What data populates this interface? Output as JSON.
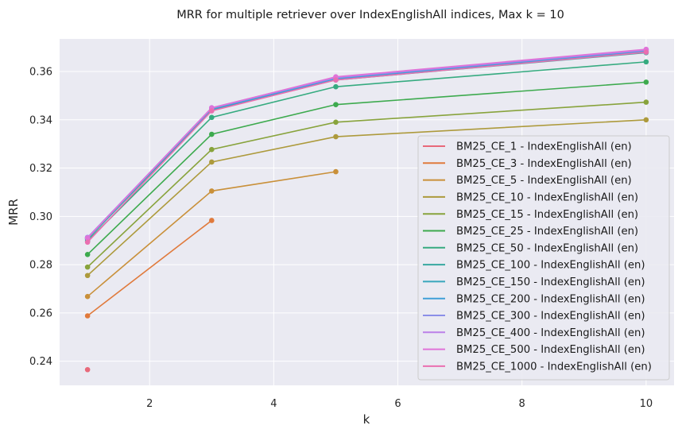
{
  "chart_data": {
    "type": "line",
    "title": "MRR for multiple retriever over IndexEnglishAll indices, Max k = 10",
    "xlabel": "k",
    "ylabel": "MRR",
    "xlim": [
      0.55,
      10.45
    ],
    "ylim": [
      0.23,
      0.3735
    ],
    "xticks": [
      2,
      4,
      6,
      8,
      10
    ],
    "yticks": [
      0.24,
      0.26,
      0.28,
      0.3,
      0.32,
      0.34,
      0.36
    ],
    "ytick_labels": [
      "0.24",
      "0.26",
      "0.28",
      "0.30",
      "0.32",
      "0.34",
      "0.36"
    ],
    "grid": true,
    "legend_position": "right",
    "series": [
      {
        "name": "BM25_CE_1 - IndexEnglishAll (en)",
        "color": "#e8697a",
        "x": [
          1
        ],
        "values": [
          0.2365
        ]
      },
      {
        "name": "BM25_CE_3 - IndexEnglishAll (en)",
        "color": "#e07a3c",
        "x": [
          1,
          3
        ],
        "values": [
          0.2588,
          0.2983
        ]
      },
      {
        "name": "BM25_CE_5 - IndexEnglishAll (en)",
        "color": "#c9903a",
        "x": [
          1,
          3,
          5
        ],
        "values": [
          0.2668,
          0.3105,
          0.3185
        ]
      },
      {
        "name": "BM25_CE_10 - IndexEnglishAll (en)",
        "color": "#ad9a3c",
        "x": [
          1,
          3,
          5,
          10
        ],
        "values": [
          0.2755,
          0.3225,
          0.333,
          0.34
        ]
      },
      {
        "name": "BM25_CE_15 - IndexEnglishAll (en)",
        "color": "#88a33c",
        "x": [
          1,
          3,
          5,
          10
        ],
        "values": [
          0.279,
          0.3277,
          0.339,
          0.3473
        ]
      },
      {
        "name": "BM25_CE_25 - IndexEnglishAll (en)",
        "color": "#3daa4e",
        "x": [
          1,
          3,
          5,
          10
        ],
        "values": [
          0.2842,
          0.334,
          0.3463,
          0.3556
        ]
      },
      {
        "name": "BM25_CE_50 - IndexEnglishAll (en)",
        "color": "#36ab80",
        "x": [
          1,
          3,
          5,
          10
        ],
        "values": [
          0.2898,
          0.341,
          0.3537,
          0.364
        ]
      },
      {
        "name": "BM25_CE_100 - IndexEnglishAll (en)",
        "color": "#37a8a0",
        "x": [
          1,
          3,
          5,
          10
        ],
        "values": [
          0.2905,
          0.344,
          0.3565,
          0.3678
        ]
      },
      {
        "name": "BM25_CE_150 - IndexEnglishAll (en)",
        "color": "#38a6bd",
        "x": [
          1,
          3,
          5,
          10
        ],
        "values": [
          0.2908,
          0.3443,
          0.3568,
          0.3681
        ]
      },
      {
        "name": "BM25_CE_200 - IndexEnglishAll (en)",
        "color": "#3f9fd8",
        "x": [
          1,
          3,
          5,
          10
        ],
        "values": [
          0.291,
          0.3445,
          0.357,
          0.3684
        ]
      },
      {
        "name": "BM25_CE_300 - IndexEnglishAll (en)",
        "color": "#8b8fe8",
        "x": [
          1,
          3,
          5,
          10
        ],
        "values": [
          0.2913,
          0.3448,
          0.3574,
          0.3688
        ]
      },
      {
        "name": "BM25_CE_400 - IndexEnglishAll (en)",
        "color": "#bb80e8",
        "x": [
          1,
          3,
          5,
          10
        ],
        "values": [
          0.2912,
          0.345,
          0.3576,
          0.369
        ]
      },
      {
        "name": "BM25_CE_500 - IndexEnglishAll (en)",
        "color": "#e073d8",
        "x": [
          1,
          3,
          5,
          10
        ],
        "values": [
          0.291,
          0.3449,
          0.3578,
          0.3692
        ]
      },
      {
        "name": "BM25_CE_1000 - IndexEnglishAll (en)",
        "color": "#ea6fb0",
        "x": [
          1,
          3,
          5,
          10
        ],
        "values": [
          0.2893,
          0.3437,
          0.3565,
          0.368
        ]
      }
    ]
  }
}
